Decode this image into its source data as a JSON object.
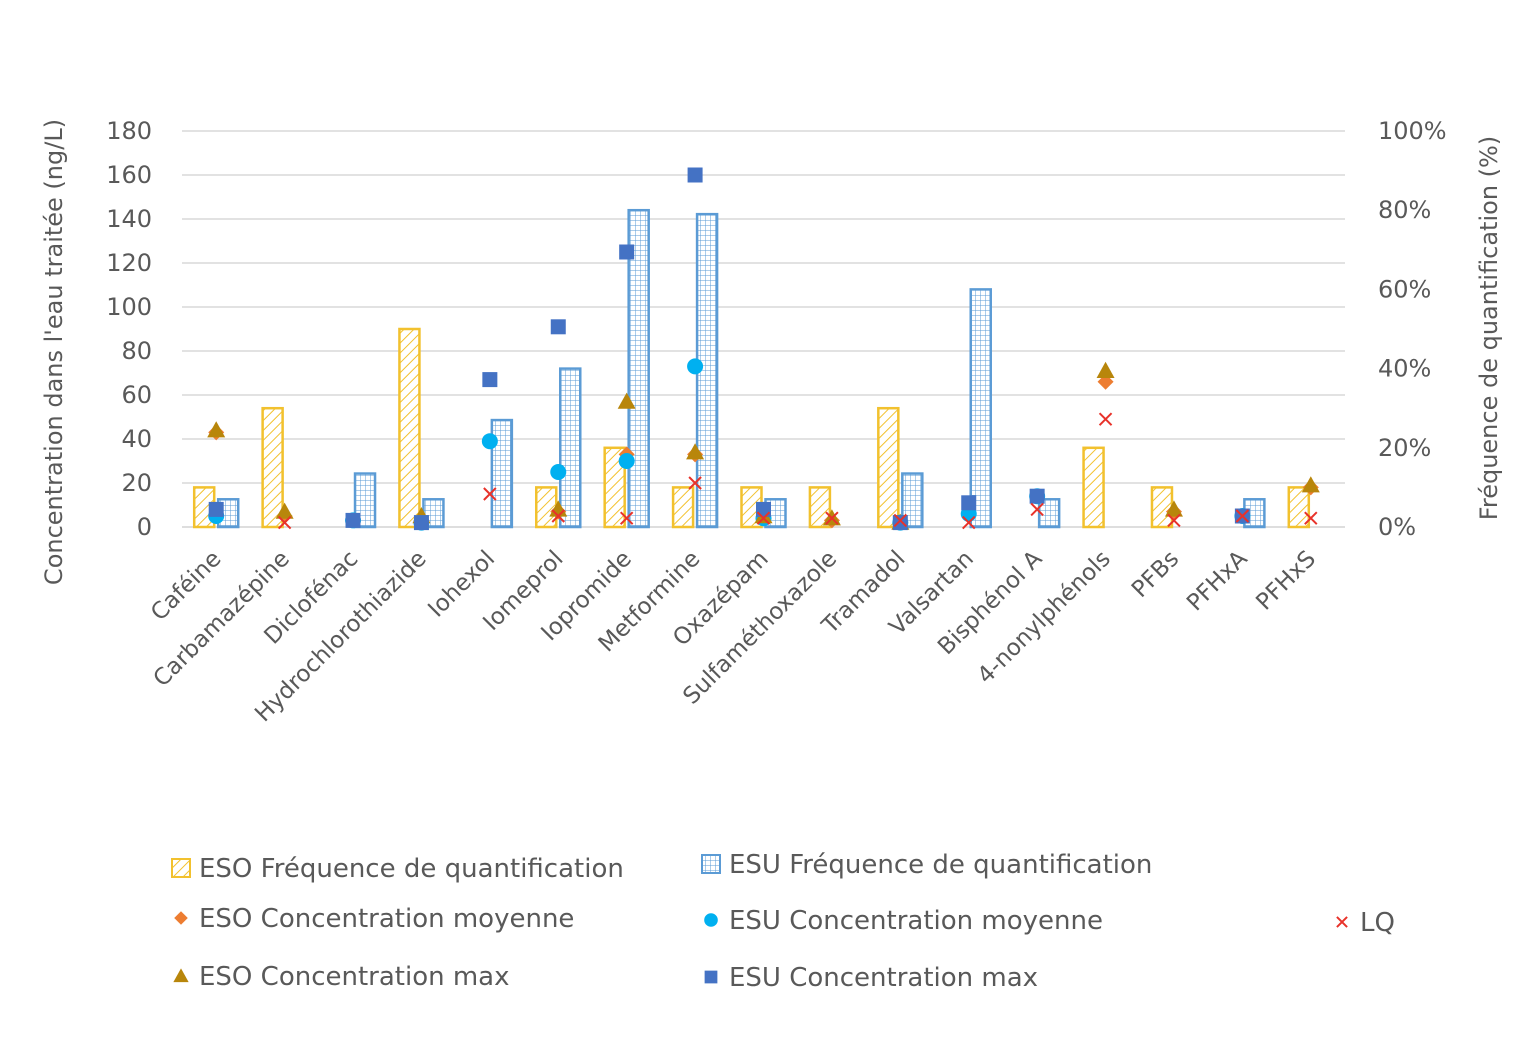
{
  "chart_data": {
    "type": "bar",
    "title": "",
    "ylabel": "Concentration dans l'eau traitée (ng/L)",
    "y2label": "Fréquence de quantification (%)",
    "ylim": [
      0,
      180
    ],
    "y2lim": [
      0,
      100
    ],
    "yticks": [
      "0",
      "20",
      "40",
      "60",
      "80",
      "100",
      "120",
      "140",
      "160",
      "180"
    ],
    "y2ticks": [
      "0%",
      "20%",
      "40%",
      "60%",
      "80%",
      "100%"
    ],
    "categories": [
      "Caféine",
      "Carbamazépine",
      "Diclofénac",
      "Hydrochlorothiazide",
      "Iohexol",
      "Iomeprol",
      "Iopromide",
      "Metformine",
      "Oxazépam",
      "Sulfaméthoxazole",
      "Tramadol",
      "Valsartan",
      "Bisphénol A",
      "4-nonylphénols",
      "PFBs",
      "PFHxA",
      "PFHxS"
    ],
    "grid": true,
    "legend_position": "bottom",
    "series": [
      {
        "name": "ESO Fréquence de quantification",
        "kind": "bar",
        "axis": "right",
        "color": "#F2C12E",
        "values": [
          10,
          30,
          0,
          50,
          0,
          10,
          20,
          10,
          10,
          10,
          30,
          0,
          0,
          20,
          10,
          0,
          10
        ]
      },
      {
        "name": "ESU Fréquence de quantification",
        "kind": "bar",
        "axis": "right",
        "color": "#5B9BD5",
        "values": [
          7,
          0,
          13.5,
          7,
          27,
          40,
          80,
          79,
          7,
          0,
          13.5,
          60,
          7,
          0,
          0,
          7,
          0
        ]
      },
      {
        "name": "ESO Concentration moyenne",
        "kind": "marker",
        "marker": "diamond",
        "axis": "left",
        "color": "#ED7D31",
        "values": [
          43,
          5,
          null,
          3,
          null,
          7,
          33,
          33,
          4,
          3,
          2,
          null,
          null,
          66,
          7,
          null,
          18
        ]
      },
      {
        "name": "ESU Concentration moyenne",
        "kind": "marker",
        "marker": "circle",
        "axis": "left",
        "color": "#00B0F0",
        "values": [
          5,
          null,
          3,
          2,
          39,
          25,
          30,
          73,
          4,
          null,
          2,
          6,
          14,
          null,
          null,
          5,
          null
        ]
      },
      {
        "name": "LQ",
        "kind": "marker",
        "marker": "x",
        "axis": "left",
        "color": "#E8322A",
        "values": [
          null,
          2,
          null,
          null,
          15,
          5,
          4,
          20,
          4,
          4,
          3,
          2,
          8,
          49,
          3,
          5,
          4
        ]
      },
      {
        "name": "ESO Concentration max",
        "kind": "marker",
        "marker": "triangle",
        "axis": "left",
        "color": "#B8860B",
        "values": [
          44,
          7,
          null,
          5,
          null,
          8,
          57,
          34,
          5,
          4,
          2,
          null,
          null,
          71,
          8,
          null,
          19
        ]
      },
      {
        "name": "ESU Concentration max",
        "kind": "marker",
        "marker": "square",
        "axis": "left",
        "color": "#4472C4",
        "values": [
          8,
          null,
          3,
          2,
          67,
          91,
          125,
          160,
          8,
          null,
          2,
          11,
          14,
          null,
          null,
          5,
          null
        ]
      }
    ]
  }
}
